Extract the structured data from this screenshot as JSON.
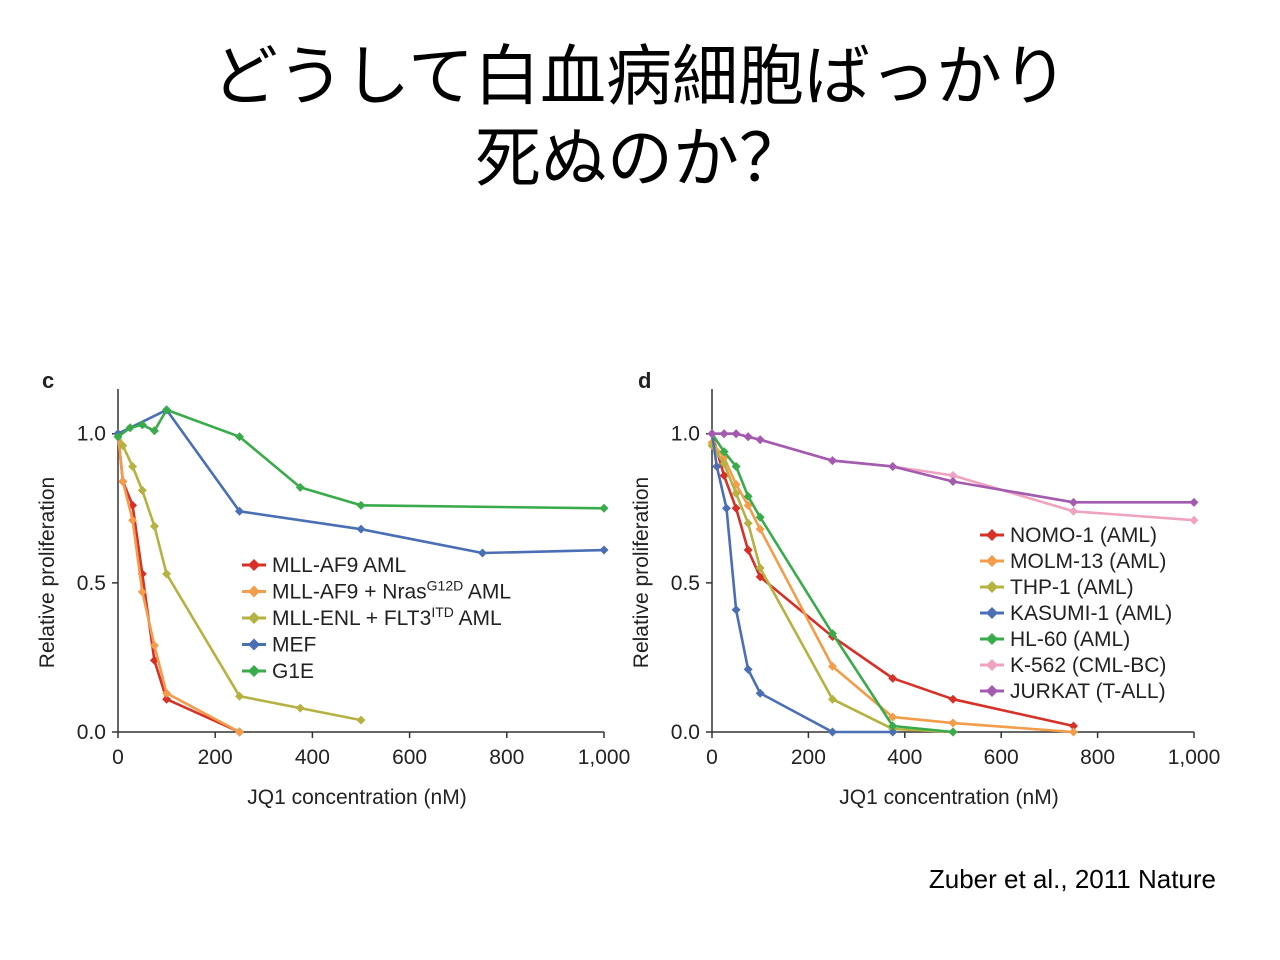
{
  "slide": {
    "title_line1": "どうして白血病細胞ばっかり",
    "title_line2": "死ぬのか？",
    "citation": "Zuber et al., 2011 Nature"
  },
  "chart_data": [
    {
      "panel_label": "c",
      "type": "line",
      "xlabel": "JQ1 concentration (nM)",
      "ylabel": "Relative proliferation",
      "xlim": [
        0,
        1000
      ],
      "ylim": [
        0,
        1.15
      ],
      "xticks": [
        0,
        200,
        400,
        600,
        800,
        1000
      ],
      "xtick_labels": [
        "0",
        "200",
        "400",
        "600",
        "800",
        "1,000"
      ],
      "yticks": [
        0,
        0.5,
        1.0
      ],
      "ytick_labels": [
        "0.0",
        "0.5",
        "1.0"
      ],
      "legend_position": "center-right",
      "series": [
        {
          "name": "MLL-AF9 AML",
          "name_sup": "",
          "name_suffix": "",
          "color": "#d73027",
          "x": [
            0,
            10,
            30,
            50,
            75,
            100,
            250
          ],
          "y": [
            1.0,
            0.84,
            0.76,
            0.53,
            0.24,
            0.11,
            0.0
          ]
        },
        {
          "name": "MLL-AF9 + Nras",
          "name_sup": "G12D",
          "name_suffix": " AML",
          "color": "#f39c4a",
          "x": [
            0,
            10,
            30,
            50,
            75,
            100,
            250
          ],
          "y": [
            1.0,
            0.84,
            0.71,
            0.47,
            0.29,
            0.13,
            0.0
          ]
        },
        {
          "name": "MLL-ENL + FLT3",
          "name_sup": "ITD",
          "name_suffix": " AML",
          "color": "#b5b242",
          "x": [
            0,
            10,
            30,
            50,
            75,
            100,
            250,
            375,
            500
          ],
          "y": [
            1.0,
            0.96,
            0.89,
            0.81,
            0.69,
            0.53,
            0.12,
            0.08,
            0.04
          ]
        },
        {
          "name": "MEF",
          "name_sup": "",
          "name_suffix": "",
          "color": "#4a6fb5",
          "x": [
            0,
            100,
            250,
            500,
            750,
            1000
          ],
          "y": [
            1.0,
            1.08,
            0.74,
            0.68,
            0.6,
            0.61
          ]
        },
        {
          "name": "G1E",
          "name_sup": "",
          "name_suffix": "",
          "color": "#3aab4a",
          "x": [
            0,
            25,
            50,
            75,
            100,
            250,
            375,
            500,
            1000
          ],
          "y": [
            0.99,
            1.02,
            1.03,
            1.01,
            1.08,
            0.99,
            0.82,
            0.76,
            0.75
          ]
        }
      ]
    },
    {
      "panel_label": "d",
      "type": "line",
      "xlabel": "JQ1 concentration (nM)",
      "ylabel": "Relative proliferation",
      "xlim": [
        0,
        1000
      ],
      "ylim": [
        0,
        1.15
      ],
      "xticks": [
        0,
        200,
        400,
        600,
        800,
        1000
      ],
      "xtick_labels": [
        "0",
        "200",
        "400",
        "600",
        "800",
        "1,000"
      ],
      "yticks": [
        0,
        0.5,
        1.0
      ],
      "ytick_labels": [
        "0.0",
        "0.5",
        "1.0"
      ],
      "legend_position": "center-right",
      "series": [
        {
          "name": "NOMO-1 (AML)",
          "name_sup": "",
          "name_suffix": "",
          "color": "#d73027",
          "x": [
            0,
            25,
            50,
            75,
            100,
            250,
            375,
            500,
            750
          ],
          "y": [
            1.0,
            0.86,
            0.75,
            0.61,
            0.52,
            0.32,
            0.18,
            0.11,
            0.02
          ]
        },
        {
          "name": "MOLM-13 (AML)",
          "name_sup": "",
          "name_suffix": "",
          "color": "#f39c4a",
          "x": [
            0,
            25,
            50,
            75,
            100,
            250,
            375,
            500,
            750
          ],
          "y": [
            0.97,
            0.92,
            0.83,
            0.76,
            0.68,
            0.22,
            0.05,
            0.03,
            0.0
          ]
        },
        {
          "name": "THP-1 (AML)",
          "name_sup": "",
          "name_suffix": "",
          "color": "#b5b242",
          "x": [
            0,
            25,
            50,
            75,
            100,
            250,
            375,
            500
          ],
          "y": [
            0.96,
            0.9,
            0.8,
            0.7,
            0.55,
            0.11,
            0.01,
            0.0
          ]
        },
        {
          "name": "KASUMI-1 (AML)",
          "name_sup": "",
          "name_suffix": "",
          "color": "#4a6fb5",
          "x": [
            0,
            10,
            30,
            50,
            75,
            100,
            250,
            375
          ],
          "y": [
            1.0,
            0.89,
            0.75,
            0.41,
            0.21,
            0.13,
            0.0,
            0.0
          ]
        },
        {
          "name": "HL-60 (AML)",
          "name_sup": "",
          "name_suffix": "",
          "color": "#3aab4a",
          "x": [
            0,
            25,
            50,
            75,
            100,
            250,
            375,
            500
          ],
          "y": [
            1.0,
            0.94,
            0.89,
            0.79,
            0.72,
            0.33,
            0.02,
            0.0
          ]
        },
        {
          "name": "K-562 (CML-BC)",
          "name_sup": "",
          "name_suffix": "",
          "color": "#f0a3c0",
          "x": [
            0,
            25,
            50,
            75,
            100,
            250,
            375,
            500,
            750,
            1000
          ],
          "y": [
            1.0,
            1.0,
            1.0,
            0.99,
            0.98,
            0.91,
            0.89,
            0.86,
            0.74,
            0.71
          ]
        },
        {
          "name": "JURKAT (T-ALL)",
          "name_sup": "",
          "name_suffix": "",
          "color": "#a35bb0",
          "x": [
            0,
            25,
            50,
            75,
            100,
            250,
            375,
            500,
            750,
            1000
          ],
          "y": [
            1.0,
            1.0,
            1.0,
            0.99,
            0.98,
            0.91,
            0.89,
            0.84,
            0.77,
            0.77
          ]
        }
      ]
    }
  ]
}
